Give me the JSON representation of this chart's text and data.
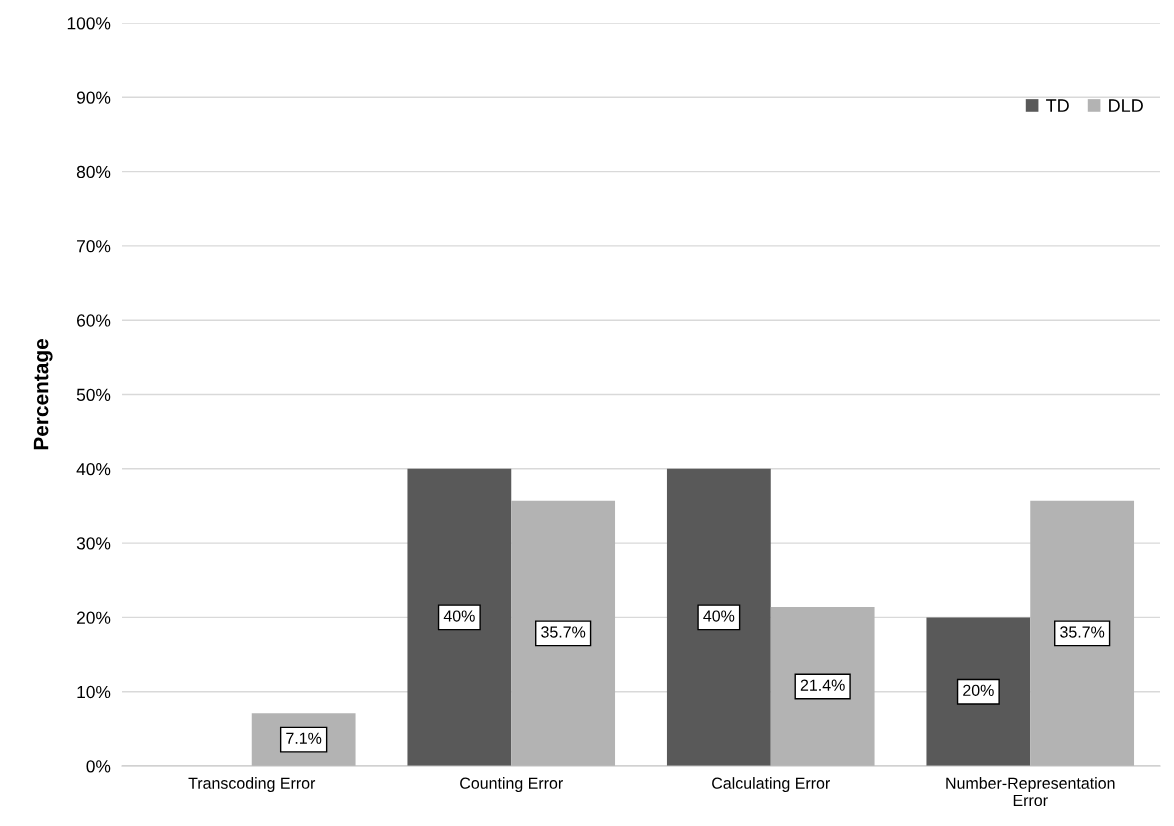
{
  "chart_data": {
    "type": "bar",
    "ylabel": "Percentage",
    "categories": [
      "Transcoding Error",
      "Counting Error",
      "Calculating Error",
      "Number-Representation Error"
    ],
    "series": [
      {
        "name": "TD",
        "color": "#595959",
        "values": [
          0,
          40,
          40,
          20
        ],
        "value_labels": [
          null,
          "40%",
          "40%",
          "20%"
        ]
      },
      {
        "name": "DLD",
        "color": "#b3b3b3",
        "values": [
          7.1,
          35.7,
          21.4,
          35.7
        ],
        "value_labels": [
          "7.1%",
          "35.7%",
          "21.4%",
          "35.7%"
        ]
      }
    ],
    "ylim": [
      0,
      100
    ],
    "yticks": [
      {
        "value": 0,
        "label": "0%"
      },
      {
        "value": 10,
        "label": "10%"
      },
      {
        "value": 20,
        "label": "20%"
      },
      {
        "value": 30,
        "label": "30%"
      },
      {
        "value": 40,
        "label": "40%"
      },
      {
        "value": 50,
        "label": "50%"
      },
      {
        "value": 60,
        "label": "60%"
      },
      {
        "value": 70,
        "label": "70%"
      },
      {
        "value": 80,
        "label": "80%"
      },
      {
        "value": 90,
        "label": "90%"
      },
      {
        "value": 100,
        "label": "100%"
      }
    ],
    "grid": "y",
    "legend": "top right"
  }
}
